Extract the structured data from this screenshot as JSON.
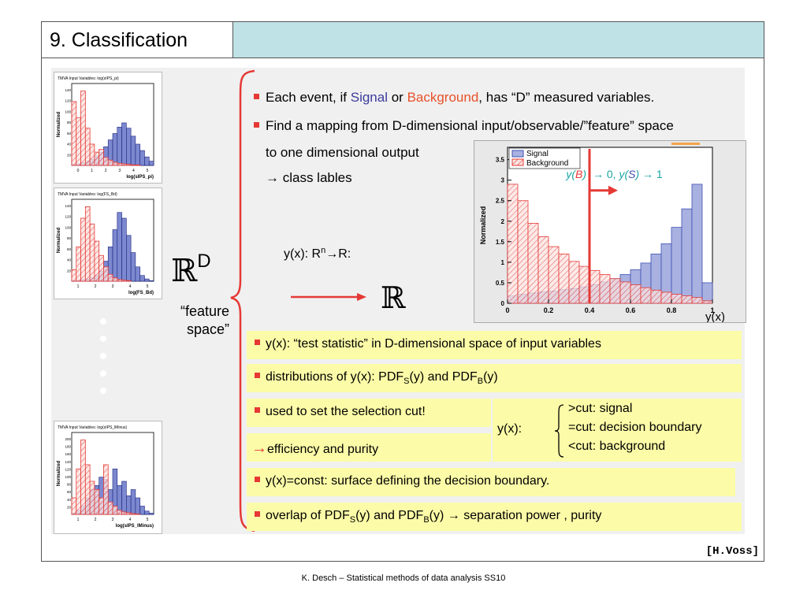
{
  "slide": {
    "title": "9. Classification",
    "source": "[H.Voss]",
    "credit": "K. Desch – Statistical methods of data analysis SS10"
  },
  "thumbs": [
    {
      "title": "TMVA Input Variables: log(sIPS_pi)",
      "xlabel": "log(sIPS_pi)",
      "ylabel": "Normalized",
      "ticks": [
        "0",
        "1",
        "2",
        "3",
        "4",
        "5"
      ],
      "yticks": [
        "20",
        "40",
        "60",
        "80",
        "100",
        "120",
        "140"
      ]
    },
    {
      "title": "TMVA Input Variables: log(FS_Bd)",
      "xlabel": "log(FS_Bd)",
      "ylabel": "Normalized",
      "ticks": [
        "1",
        "2",
        "3",
        "4",
        "5"
      ],
      "yticks": [
        "20",
        "40",
        "60",
        "80",
        "100",
        "120",
        "140"
      ]
    },
    {
      "title": "TMVA Input Variables: log(sIPS_lMinus)",
      "xlabel": "log(sIPS_lMinus)",
      "ylabel": "Normalized",
      "ticks": [
        "1",
        "2",
        "3",
        "4",
        "5"
      ],
      "yticks": [
        "20",
        "40",
        "60",
        "80",
        "100",
        "120",
        "140",
        "160",
        "180",
        "200"
      ]
    }
  ],
  "left": {
    "rd_base": "ℝ",
    "rd_sup": "D",
    "feature_line1": "“feature",
    "feature_line2": "space”"
  },
  "bullets": {
    "b1_a": "Each event, if ",
    "b1_signal": "Signal",
    "b1_b": " or ",
    "b1_background": "Background",
    "b1_c": ", has “D” measured variables.",
    "b2": "Find a mapping from D-dimensional input/observable/”feature” space",
    "b2_line2": "to one dimensional output",
    "b2_line3": "→ class lables",
    "mapping": "y(x): R",
    "mapping_sup": "n",
    "mapping_end": "→R:",
    "r_symbol": "ℝ"
  },
  "chart_data": {
    "type": "bar",
    "xlabel": "y(x)",
    "ylabel": "Normalized",
    "xlim": [
      0,
      1
    ],
    "ylim": [
      0,
      3.8
    ],
    "xticks": [
      "0",
      "0.2",
      "0.4",
      "0.6",
      "0.8",
      "1"
    ],
    "yticks": [
      "0",
      "0.5",
      "1",
      "1.5",
      "2",
      "2.5",
      "3",
      "3.5"
    ],
    "legend": [
      "Signal",
      "Background"
    ],
    "legend_position": "top-left",
    "cut_x": 0.4,
    "annotation": {
      "yB": "y(B)",
      "arrow_to": "→ 0, ",
      "yS": "y(S)",
      "arrow_to2": "→ 1"
    },
    "bin_centers": [
      0.025,
      0.075,
      0.125,
      0.175,
      0.225,
      0.275,
      0.325,
      0.375,
      0.425,
      0.475,
      0.525,
      0.575,
      0.625,
      0.675,
      0.725,
      0.775,
      0.825,
      0.875,
      0.925,
      0.975
    ],
    "series": [
      {
        "name": "Signal",
        "color": "#3f51b5",
        "values": [
          0.18,
          0.22,
          0.25,
          0.28,
          0.3,
          0.33,
          0.36,
          0.4,
          0.45,
          0.52,
          0.6,
          0.7,
          0.82,
          0.98,
          1.2,
          1.45,
          1.85,
          2.3,
          2.9,
          0.5
        ]
      },
      {
        "name": "Background",
        "color": "#e53935",
        "values": [
          2.9,
          2.5,
          1.95,
          1.62,
          1.38,
          1.2,
          1.02,
          0.9,
          0.8,
          0.7,
          0.6,
          0.52,
          0.45,
          0.38,
          0.32,
          0.27,
          0.22,
          0.18,
          0.14,
          0.06
        ]
      }
    ]
  },
  "yellow": {
    "y1": "y(x):  “test statistic” in D-dimensional space of input variables",
    "y2_a": "distributions of y(x):  PDF",
    "y2_s": "S",
    "y2_b": "(y) and PDF",
    "y2_bsub": "B",
    "y2_c": "(y)",
    "y3": "used to set the selection cut!",
    "y4_arrow": "→",
    "y4": "efficiency and purity",
    "cut_label": "y(x):",
    "cut1": ">cut: signal",
    "cut2": "=cut: decision boundary",
    "cut3": "<cut: background",
    "y5": "y(x)=const: surface defining the decision boundary.",
    "y6_a": "overlap of PDF",
    "y6_s": "S",
    "y6_b": "(y) and PDF",
    "y6_bsub": "B",
    "y6_c": "(y) → separation power , purity"
  },
  "colors": {
    "signal": "#3b3b9e",
    "background": "#e8512a",
    "accent_red": "#e53935",
    "teal": "#1aa3a3",
    "yellow": "#fcfca8",
    "title_fill": "#bfe2e6"
  }
}
